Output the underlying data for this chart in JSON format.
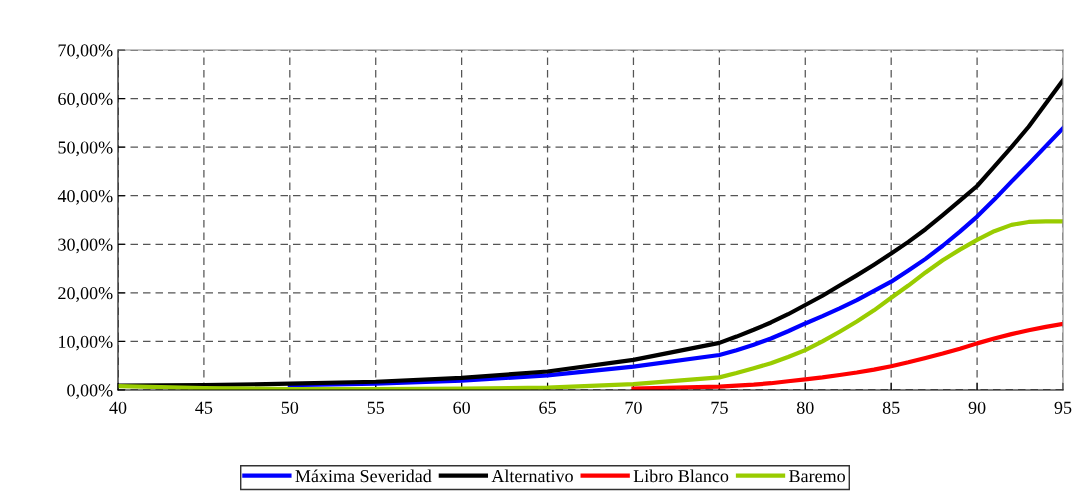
{
  "chart_data": {
    "type": "line",
    "x": [
      40,
      45,
      50,
      55,
      60,
      65,
      70,
      75,
      76,
      77,
      78,
      79,
      80,
      81,
      82,
      83,
      84,
      85,
      86,
      87,
      88,
      89,
      90,
      91,
      92,
      93,
      94,
      95
    ],
    "series": [
      {
        "name": "Máxima Severidad",
        "color": "#0000ff",
        "values": [
          null,
          null,
          1.0,
          1.3,
          1.9,
          3.0,
          4.8,
          7.2,
          8.2,
          9.3,
          10.6,
          12.1,
          13.7,
          15.2,
          16.8,
          18.5,
          20.4,
          22.3,
          24.6,
          27,
          29.7,
          32.6,
          35.7,
          39.2,
          42.9,
          46.5,
          50.2,
          53.9
        ]
      },
      {
        "name": "Alternativo",
        "color": "#000000",
        "values": [
          0.9,
          1.0,
          1.3,
          1.7,
          2.5,
          3.8,
          6.2,
          9.7,
          11,
          12.4,
          13.9,
          15.6,
          17.5,
          19.4,
          21.5,
          23.6,
          25.8,
          28.1,
          30.5,
          33.1,
          36,
          39,
          42,
          46,
          50,
          54.2,
          59,
          63.8
        ]
      },
      {
        "name": "Libro Blanco",
        "color": "#ff0000",
        "values": [
          null,
          null,
          null,
          null,
          null,
          null,
          0.3,
          0.7,
          0.9,
          1.1,
          1.4,
          1.8,
          2.2,
          2.6,
          3.1,
          3.6,
          4.2,
          4.9,
          5.7,
          6.6,
          7.5,
          8.5,
          9.6,
          10.6,
          11.5,
          12.3,
          13,
          13.6
        ]
      },
      {
        "name": "Baremo",
        "color": "#99cc00",
        "values": [
          0.8,
          0.4,
          0.2,
          0.2,
          0.3,
          0.5,
          1.2,
          2.6,
          3.5,
          4.5,
          5.5,
          6.8,
          8.2,
          10,
          12,
          14.1,
          16.4,
          19,
          21.5,
          24.2,
          26.7,
          28.9,
          30.9,
          32.7,
          34,
          34.6,
          34.7,
          34.7
        ]
      }
    ],
    "xlim": [
      40,
      95
    ],
    "xticks": [
      40,
      45,
      50,
      55,
      60,
      65,
      70,
      75,
      80,
      85,
      90,
      95
    ],
    "ylim": [
      0,
      70
    ],
    "yticks": [
      {
        "value": 0,
        "label": "0,00%"
      },
      {
        "value": 10,
        "label": "10,00%"
      },
      {
        "value": 20,
        "label": "20,00%"
      },
      {
        "value": 30,
        "label": "30,00%"
      },
      {
        "value": 40,
        "label": "40,00%"
      },
      {
        "value": 50,
        "label": "50,00%"
      },
      {
        "value": 60,
        "label": "60,00%"
      },
      {
        "value": 70,
        "label": "70,00%"
      }
    ],
    "grid": true,
    "legend": "bottom",
    "marker": "none",
    "line_style": "solid"
  }
}
